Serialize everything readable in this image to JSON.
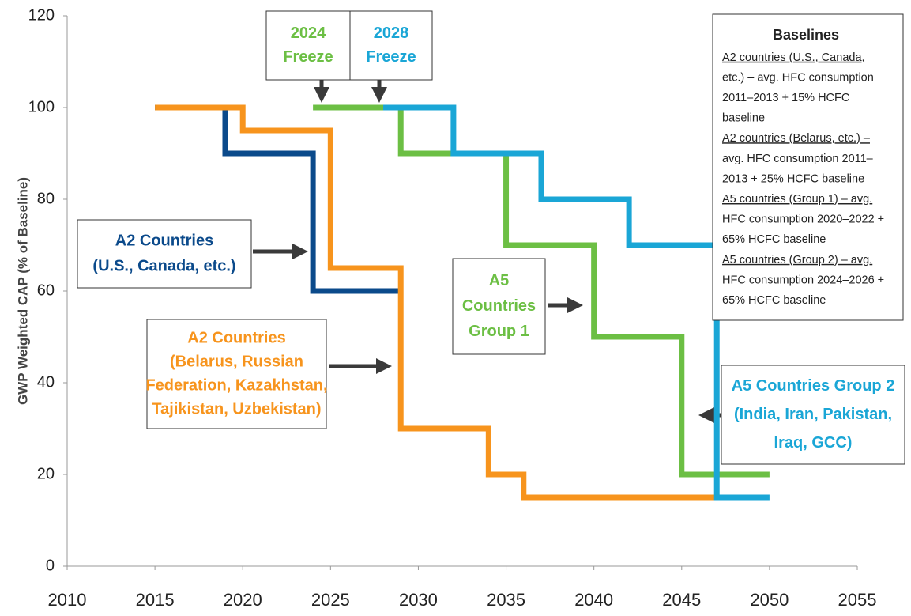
{
  "chart_data": {
    "type": "line",
    "y_label": "GWP Weighted CAP (% of Baseline)",
    "xlim": [
      2010,
      2055
    ],
    "xticks": [
      2010,
      2015,
      2020,
      2025,
      2030,
      2035,
      2040,
      2045,
      2050,
      2055
    ],
    "ylim": [
      0,
      120
    ],
    "yticks": [
      0,
      20,
      40,
      60,
      80,
      100,
      120
    ],
    "grid": false,
    "series": [
      {
        "name": "A2 Countries (U.S., Canada, etc.)",
        "color": "#0b4a8b",
        "x": [
          2015,
          2019,
          2019,
          2024,
          2024,
          2029
        ],
        "values": [
          100,
          100,
          90,
          90,
          60,
          60
        ]
      },
      {
        "name": "A2 Countries (Belarus, Russian Federation, Kazakhstan, Tajikistan, Uzbekistan)",
        "color": "#f7941d",
        "x": [
          2015,
          2020,
          2020,
          2025,
          2025,
          2029,
          2029,
          2034,
          2034,
          2036,
          2036,
          2047
        ],
        "values": [
          100,
          100,
          95,
          95,
          65,
          65,
          30,
          30,
          20,
          20,
          15,
          15
        ]
      },
      {
        "name": "A5 Countries Group 1",
        "color": "#6cbf44",
        "x": [
          2024,
          2029,
          2029,
          2035,
          2035,
          2040,
          2040,
          2045,
          2045,
          2050
        ],
        "values": [
          100,
          100,
          90,
          90,
          70,
          70,
          50,
          50,
          20,
          20
        ]
      },
      {
        "name": "A5 Countries Group 2 (India, Iran, Pakistan, Iraq, GCC)",
        "color": "#1aa6d6",
        "x": [
          2028,
          2032,
          2032,
          2037,
          2037,
          2042,
          2042,
          2047,
          2047,
          2050
        ],
        "values": [
          100,
          100,
          90,
          90,
          80,
          80,
          70,
          70,
          15,
          15
        ]
      }
    ],
    "annotations": [
      {
        "lines": [
          "2024",
          "Freeze"
        ],
        "color": "#6cbf44"
      },
      {
        "lines": [
          "2028",
          "Freeze"
        ],
        "color": "#1aa6d6"
      },
      {
        "lines": [
          "A2 Countries",
          "(U.S., Canada, etc.)"
        ],
        "color": "#0b4a8b"
      },
      {
        "lines": [
          "A2 Countries",
          "(Belarus, Russian",
          "Federation, Kazakhstan,",
          "Tajikistan, Uzbekistan)"
        ],
        "color": "#f7941d"
      },
      {
        "lines": [
          "A5",
          "Countries",
          "Group 1"
        ],
        "color": "#6cbf44"
      },
      {
        "lines": [
          "A5 Countries Group 2",
          "(India, Iran, Pakistan,",
          "Iraq, GCC)"
        ],
        "color": "#1aa6d6"
      }
    ],
    "baselines": {
      "title": "Baselines",
      "lines": [
        "A2 countries (U.S., Canada,",
        "etc.) – avg. HFC consumption",
        "2011–2013 + 15% HCFC",
        "baseline",
        "A2 countries (Belarus, etc.) –",
        "avg. HFC consumption 2011–",
        "2013 + 25% HCFC baseline",
        "A5 countries (Group 1) – avg.",
        "HFC consumption 2020–2022 +",
        "65% HCFC baseline",
        "A5 countries (Group 2) – avg.",
        "HFC consumption 2024–2026 +",
        "65% HCFC baseline"
      ]
    }
  }
}
